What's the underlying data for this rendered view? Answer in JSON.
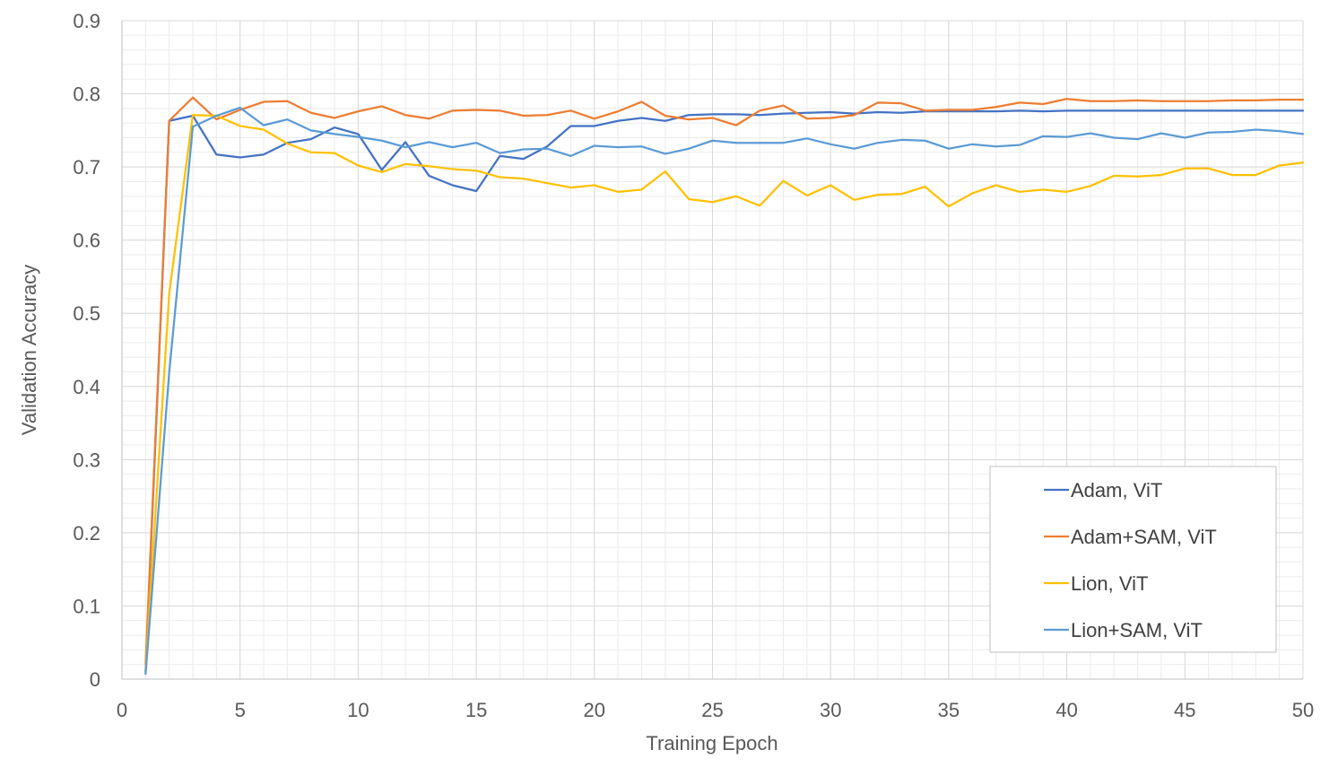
{
  "chart_data": {
    "type": "line",
    "title": "",
    "xlabel": "Training Epoch",
    "ylabel": "Validation Accuracy",
    "xlim": [
      0,
      50
    ],
    "ylim": [
      0,
      0.9
    ],
    "x_ticks": [
      0,
      5,
      10,
      15,
      20,
      25,
      30,
      35,
      40,
      45,
      50
    ],
    "y_ticks": [
      0,
      0.1,
      0.2,
      0.3,
      0.4,
      0.5,
      0.6,
      0.7,
      0.8,
      0.9
    ],
    "x_tick_labels": [
      "0",
      "5",
      "10",
      "15",
      "20",
      "25",
      "30",
      "35",
      "40",
      "45",
      "50"
    ],
    "y_tick_labels": [
      "0",
      "0.1",
      "0.2",
      "0.3",
      "0.4",
      "0.5",
      "0.6",
      "0.7",
      "0.8",
      "0.9"
    ],
    "grid": true,
    "legend_position": "bottom-right",
    "x": [
      1,
      2,
      3,
      4,
      5,
      6,
      7,
      8,
      9,
      10,
      11,
      12,
      13,
      14,
      15,
      16,
      17,
      18,
      19,
      20,
      21,
      22,
      23,
      24,
      25,
      26,
      27,
      28,
      29,
      30,
      31,
      32,
      33,
      34,
      35,
      36,
      37,
      38,
      39,
      40,
      41,
      42,
      43,
      44,
      45,
      46,
      47,
      48,
      49,
      50
    ],
    "series": [
      {
        "name": "Adam, ViT",
        "color": "#4472C4",
        "values": [
          0.01,
          0.763,
          0.77,
          0.717,
          0.713,
          0.717,
          0.733,
          0.738,
          0.754,
          0.745,
          0.696,
          0.734,
          0.688,
          0.675,
          0.667,
          0.715,
          0.711,
          0.728,
          0.756,
          0.756,
          0.763,
          0.767,
          0.763,
          0.771,
          0.772,
          0.772,
          0.771,
          0.773,
          0.774,
          0.775,
          0.773,
          0.775,
          0.774,
          0.776,
          0.776,
          0.776,
          0.776,
          0.777,
          0.776,
          0.777,
          0.777,
          0.777,
          0.777,
          0.777,
          0.777,
          0.777,
          0.777,
          0.777,
          0.777,
          0.777
        ]
      },
      {
        "name": "Adam+SAM, ViT",
        "color": "#ED7D31",
        "values": [
          0.02,
          0.763,
          0.795,
          0.765,
          0.778,
          0.789,
          0.79,
          0.774,
          0.767,
          0.776,
          0.783,
          0.771,
          0.766,
          0.777,
          0.778,
          0.777,
          0.77,
          0.771,
          0.777,
          0.766,
          0.776,
          0.789,
          0.77,
          0.765,
          0.767,
          0.757,
          0.777,
          0.784,
          0.766,
          0.767,
          0.771,
          0.788,
          0.787,
          0.777,
          0.778,
          0.778,
          0.782,
          0.788,
          0.786,
          0.793,
          0.79,
          0.79,
          0.791,
          0.79,
          0.79,
          0.79,
          0.791,
          0.791,
          0.792,
          0.792
        ]
      },
      {
        "name": "Lion, ViT",
        "color": "#FFC000",
        "values": [
          0.01,
          0.527,
          0.771,
          0.77,
          0.756,
          0.751,
          0.732,
          0.72,
          0.719,
          0.702,
          0.693,
          0.704,
          0.701,
          0.697,
          0.695,
          0.686,
          0.684,
          0.678,
          0.672,
          0.675,
          0.666,
          0.669,
          0.694,
          0.656,
          0.652,
          0.66,
          0.647,
          0.681,
          0.661,
          0.675,
          0.655,
          0.662,
          0.663,
          0.673,
          0.646,
          0.664,
          0.675,
          0.666,
          0.669,
          0.666,
          0.674,
          0.688,
          0.687,
          0.689,
          0.698,
          0.698,
          0.689,
          0.689,
          0.702,
          0.706
        ]
      },
      {
        "name": "Lion+SAM, ViT",
        "color": "#5B9BD5",
        "values": [
          0.007,
          0.419,
          0.755,
          0.77,
          0.781,
          0.757,
          0.765,
          0.75,
          0.745,
          0.741,
          0.736,
          0.727,
          0.734,
          0.727,
          0.733,
          0.719,
          0.724,
          0.725,
          0.715,
          0.729,
          0.727,
          0.728,
          0.718,
          0.725,
          0.736,
          0.733,
          0.733,
          0.733,
          0.739,
          0.731,
          0.725,
          0.733,
          0.737,
          0.736,
          0.725,
          0.731,
          0.728,
          0.73,
          0.742,
          0.741,
          0.746,
          0.74,
          0.738,
          0.746,
          0.74,
          0.747,
          0.748,
          0.751,
          0.749,
          0.745
        ]
      }
    ]
  }
}
